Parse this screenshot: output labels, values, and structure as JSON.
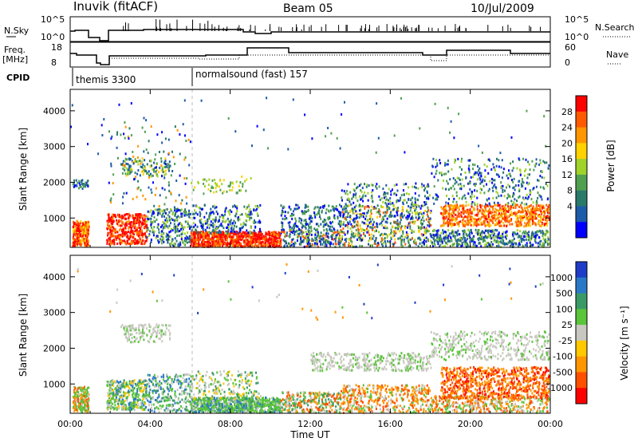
{
  "header": {
    "station": "Inuvik (fitACF)",
    "beam": "Beam 05",
    "date": "10/Jul/2009"
  },
  "panels": {
    "nsky": {
      "left_label": "N.Sky",
      "right_label": "N.Search",
      "left_ticks": [
        "10^5",
        "10^0"
      ],
      "right_ticks": [
        "10^5",
        "10^0"
      ]
    },
    "freq": {
      "left_label_1": "Freq.",
      "left_label_2": "[MHz]",
      "right_label": "Nave",
      "left_ticks": [
        "18",
        "8"
      ],
      "right_ticks": [
        "60",
        "0"
      ]
    },
    "cpid": {
      "label": "CPID",
      "programs": [
        {
          "name": "themis 3300"
        },
        {
          "name": "normalsound (fast) 157"
        }
      ]
    }
  },
  "chart_data": [
    {
      "type": "heatmap",
      "name": "power-panel",
      "ylabel": "Slant Range [km]",
      "yticks": [
        1000,
        2000,
        3000,
        4000
      ],
      "ylim": [
        180,
        4600
      ],
      "colorbar": {
        "label": "Power [dB]",
        "ticks": [
          "28",
          "24",
          "20",
          "16",
          "12",
          "8",
          "4"
        ],
        "colors": [
          "#ff0000",
          "#ff5a00",
          "#ff9600",
          "#ffd200",
          "#a0d22a",
          "#50a050",
          "#2a7a6a",
          "#1e5aaa",
          "#0000ff"
        ]
      }
    },
    {
      "type": "heatmap",
      "name": "velocity-panel",
      "ylabel": "Slant Range [km]",
      "yticks": [
        1000,
        2000,
        3000,
        4000
      ],
      "ylim": [
        180,
        4600
      ],
      "colorbar": {
        "label": "Velocity [m s⁻¹]",
        "ticks": [
          "1000",
          "500",
          "100",
          "25",
          "-25",
          "-100",
          "-500",
          "-1000"
        ],
        "colors": [
          "#1e3cc8",
          "#2a78c8",
          "#3a9a66",
          "#5ac43a",
          "#c8c8c0",
          "#ffc800",
          "#ff9600",
          "#ff5000",
          "#ff0000"
        ]
      }
    }
  ],
  "x_axis": {
    "label": "Time UT",
    "ticks": [
      "00:00",
      "04:00",
      "08:00",
      "12:00",
      "16:00",
      "20:00",
      "00:00"
    ]
  }
}
